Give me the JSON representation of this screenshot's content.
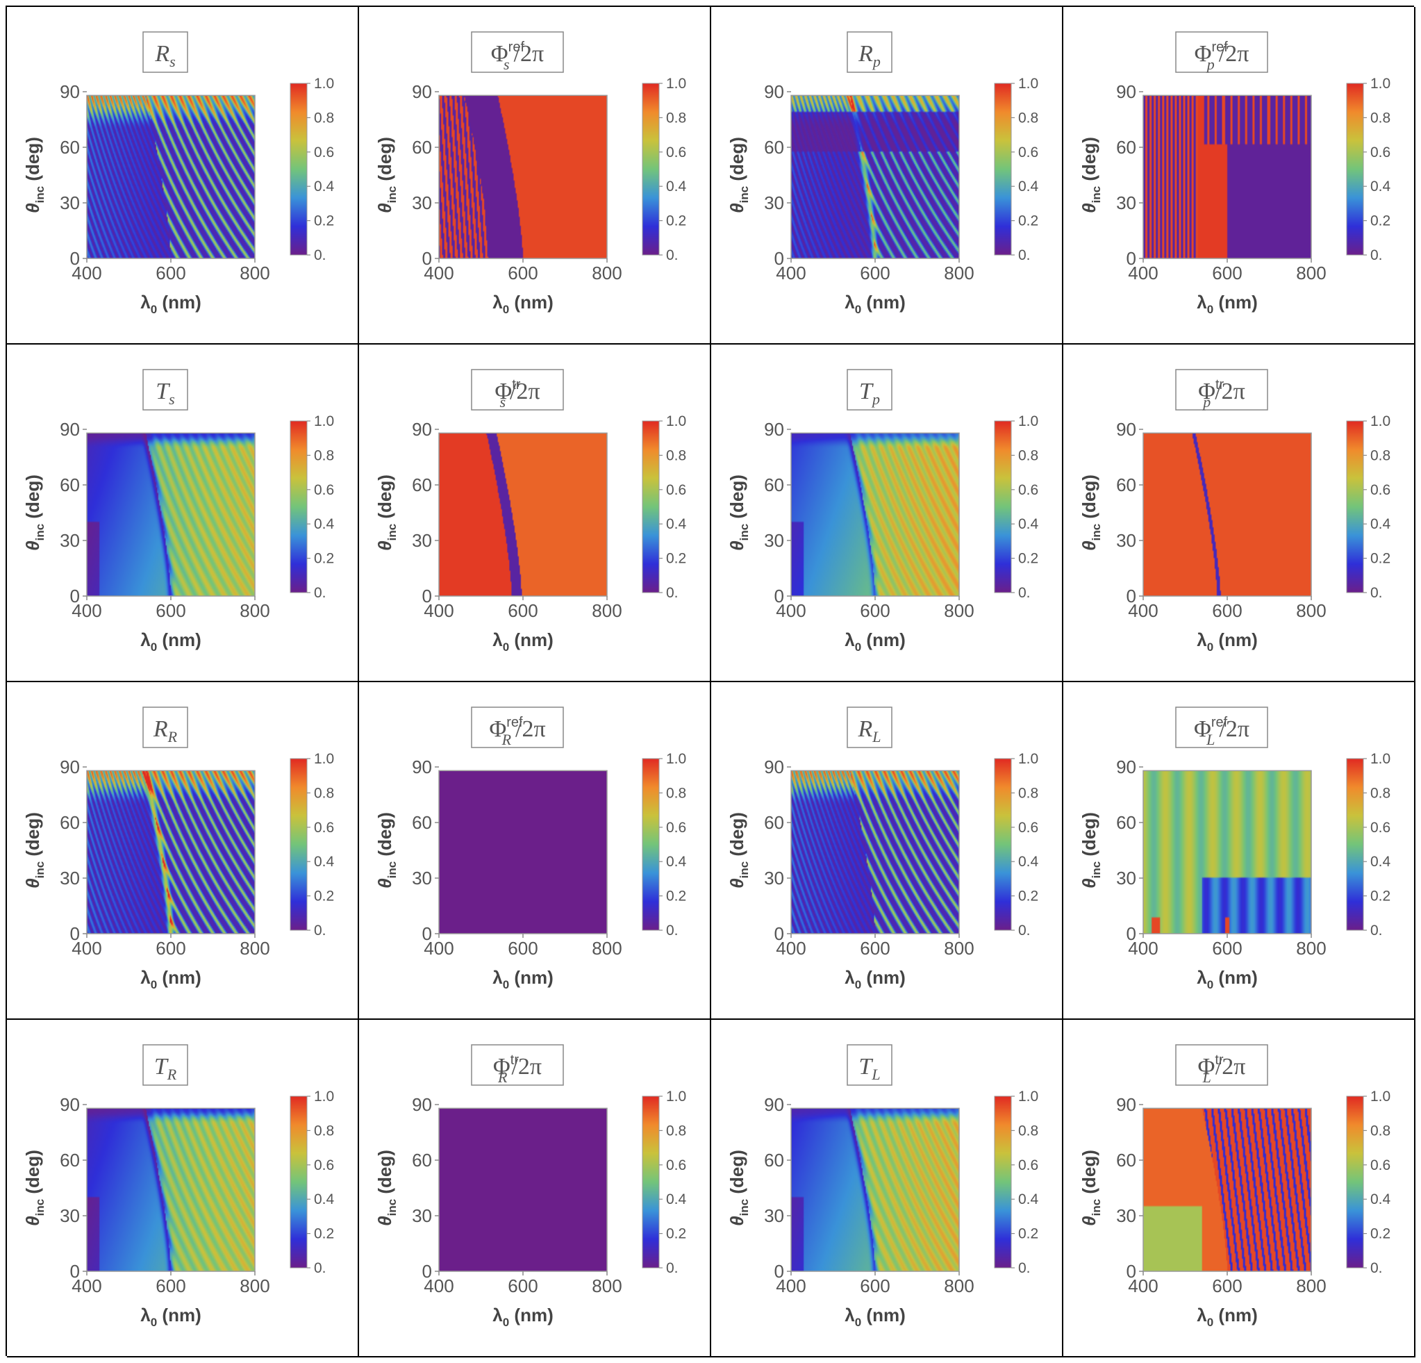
{
  "chart_data": [
    {
      "type": "heatmap",
      "id": "Rs",
      "title": {
        "sym": "R",
        "sub": "s",
        "sup": "",
        "suffix": ""
      },
      "variant": "rs"
    },
    {
      "type": "heatmap",
      "id": "PhiRefS",
      "title": {
        "sym": "Φ",
        "sub": "s",
        "sup": "ref",
        "suffix": "/2π"
      },
      "variant": "phirefs"
    },
    {
      "type": "heatmap",
      "id": "Rp",
      "title": {
        "sym": "R",
        "sub": "p",
        "sup": "",
        "suffix": ""
      },
      "variant": "rp"
    },
    {
      "type": "heatmap",
      "id": "PhiRefP",
      "title": {
        "sym": "Φ",
        "sub": "p",
        "sup": "ref",
        "suffix": "/2π"
      },
      "variant": "phirefp"
    },
    {
      "type": "heatmap",
      "id": "Ts",
      "title": {
        "sym": "T",
        "sub": "s",
        "sup": "",
        "suffix": ""
      },
      "variant": "ts"
    },
    {
      "type": "heatmap",
      "id": "PhiTrS",
      "title": {
        "sym": "Φ",
        "sub": "s",
        "sup": "tr",
        "suffix": "/2π"
      },
      "variant": "phitrs"
    },
    {
      "type": "heatmap",
      "id": "Tp",
      "title": {
        "sym": "T",
        "sub": "p",
        "sup": "",
        "suffix": ""
      },
      "variant": "tp"
    },
    {
      "type": "heatmap",
      "id": "PhiTrP",
      "title": {
        "sym": "Φ",
        "sub": "p",
        "sup": "tr",
        "suffix": "/2π"
      },
      "variant": "phitrp"
    },
    {
      "type": "heatmap",
      "id": "RR",
      "title": {
        "sym": "R",
        "sub": "R",
        "sup": "",
        "suffix": ""
      },
      "variant": "rr"
    },
    {
      "type": "heatmap",
      "id": "PhiRefR",
      "title": {
        "sym": "Φ",
        "sub": "R",
        "sup": "ref",
        "suffix": "/2π"
      },
      "variant": "const0"
    },
    {
      "type": "heatmap",
      "id": "RL",
      "title": {
        "sym": "R",
        "sub": "L",
        "sup": "",
        "suffix": ""
      },
      "variant": "rl"
    },
    {
      "type": "heatmap",
      "id": "PhiRefL",
      "title": {
        "sym": "Φ",
        "sub": "L",
        "sup": "ref",
        "suffix": "/2π"
      },
      "variant": "phirefl"
    },
    {
      "type": "heatmap",
      "id": "TR",
      "title": {
        "sym": "T",
        "sub": "R",
        "sup": "",
        "suffix": ""
      },
      "variant": "tr"
    },
    {
      "type": "heatmap",
      "id": "PhiTrR",
      "title": {
        "sym": "Φ",
        "sub": "R",
        "sup": "tr",
        "suffix": "/2π"
      },
      "variant": "const0"
    },
    {
      "type": "heatmap",
      "id": "TL",
      "title": {
        "sym": "T",
        "sub": "L",
        "sup": "",
        "suffix": ""
      },
      "variant": "tl"
    },
    {
      "type": "heatmap",
      "id": "PhiTrL",
      "title": {
        "sym": "Φ",
        "sub": "L",
        "sup": "tr",
        "suffix": "/2π"
      },
      "variant": "phitrl"
    }
  ],
  "axes": {
    "xlabel": "λ",
    "xlabel_sub": "0",
    "xlabel_unit": " (nm)",
    "ylabel": "θ",
    "ylabel_sub": "inc",
    "ylabel_unit": " (deg)",
    "xlim": [
      400,
      800
    ],
    "ylim": [
      0,
      88
    ],
    "xticks": [
      "400",
      "600",
      "800"
    ],
    "xtick_values": [
      400,
      600,
      800
    ],
    "yticks": [
      "0",
      "30",
      "60",
      "90"
    ],
    "ytick_values": [
      0,
      30,
      60,
      90
    ]
  },
  "colorbar": {
    "range": [
      0,
      1
    ],
    "ticks": [
      "0.",
      "0.2",
      "0.4",
      "0.6",
      "0.8",
      "1.0"
    ],
    "tick_values": [
      0,
      0.2,
      0.4,
      0.6,
      0.8,
      1.0
    ],
    "colors": [
      "#6b1f8a",
      "#2f2fd8",
      "#3a93d8",
      "#73c47a",
      "#c9c23c",
      "#f08a2c",
      "#e02a22"
    ]
  }
}
